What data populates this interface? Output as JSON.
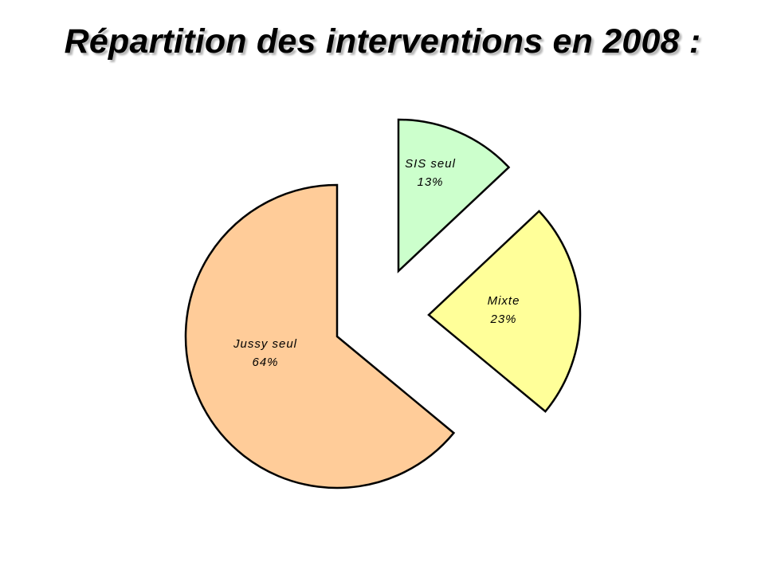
{
  "chart_data": {
    "type": "pie",
    "title": "Répartition des interventions en 2008 :",
    "exploded": true,
    "slices": [
      {
        "key": "sis",
        "label": "SIS seul",
        "value": 13,
        "value_label": "13%",
        "color": "#ccffcc"
      },
      {
        "key": "mixte",
        "label": "Mixte",
        "value": 23,
        "value_label": "23%",
        "color": "#ffff99"
      },
      {
        "key": "jussy",
        "label": "Jussy seul",
        "value": 64,
        "value_label": "64%",
        "color": "#ffcc99"
      }
    ]
  }
}
